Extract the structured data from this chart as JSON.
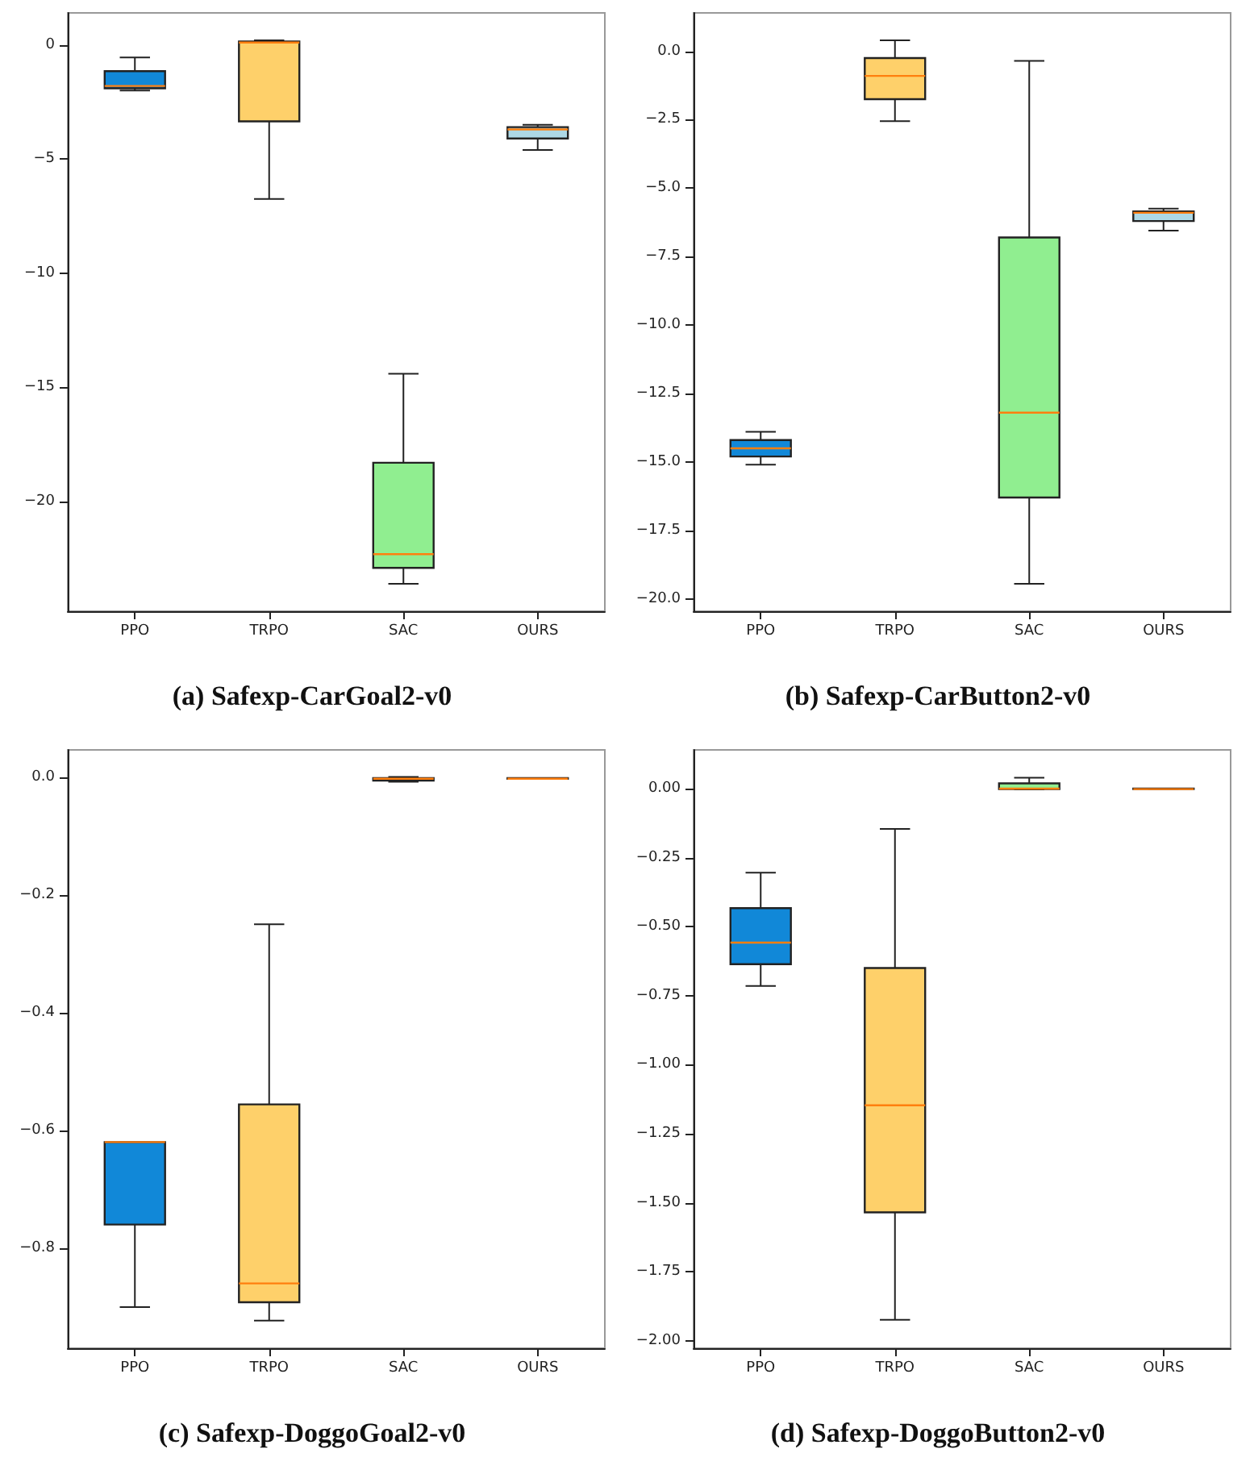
{
  "chart_data": [
    {
      "type": "box",
      "title": "(a) Safexp-CarGoal2-v0",
      "categories": [
        "PPO",
        "TRPO",
        "SAC",
        "OURS"
      ],
      "colors": [
        "#1188d8",
        "#fed06a",
        "#90ee90",
        "#add8e6"
      ],
      "boxes": [
        {
          "low": -2.0,
          "q1": -1.9,
          "median": -1.8,
          "q3": -1.15,
          "high": -0.55
        },
        {
          "low": -6.75,
          "q1": -3.35,
          "median": 0.1,
          "q3": 0.15,
          "high": 0.2
        },
        {
          "low": -23.6,
          "q1": -22.9,
          "median": -22.3,
          "q3": -18.3,
          "high": -14.4
        },
        {
          "low": -4.6,
          "q1": -4.1,
          "median": -3.7,
          "q3": -3.6,
          "high": -3.5
        }
      ],
      "ylim": [
        -24.8,
        1.4
      ],
      "yticks": [
        {
          "value": 0,
          "label": "0"
        },
        {
          "value": -5,
          "label": "−5"
        },
        {
          "value": -10,
          "label": "−10"
        },
        {
          "value": -15,
          "label": "−15"
        },
        {
          "value": -20,
          "label": "−20"
        }
      ]
    },
    {
      "type": "box",
      "title": "(b) Safexp-CarButton2-v0",
      "categories": [
        "PPO",
        "TRPO",
        "SAC",
        "OURS"
      ],
      "colors": [
        "#1188d8",
        "#fed06a",
        "#90ee90",
        "#add8e6"
      ],
      "boxes": [
        {
          "low": -15.1,
          "q1": -14.8,
          "median": -14.5,
          "q3": -14.2,
          "high": -13.9
        },
        {
          "low": -2.55,
          "q1": -1.75,
          "median": -0.9,
          "q3": -0.25,
          "high": 0.4
        },
        {
          "low": -19.45,
          "q1": -16.3,
          "median": -13.2,
          "q3": -6.8,
          "high": -0.35
        },
        {
          "low": -6.55,
          "q1": -6.2,
          "median": -5.9,
          "q3": -5.85,
          "high": -5.75
        }
      ],
      "ylim": [
        -20.45,
        1.4
      ],
      "yticks": [
        {
          "value": 0,
          "label": "0.0"
        },
        {
          "value": -2.5,
          "label": "−2.5"
        },
        {
          "value": -5,
          "label": "−5.0"
        },
        {
          "value": -7.5,
          "label": "−7.5"
        },
        {
          "value": -10,
          "label": "−10.0"
        },
        {
          "value": -12.5,
          "label": "−12.5"
        },
        {
          "value": -15,
          "label": "−15.0"
        },
        {
          "value": -17.5,
          "label": "−17.5"
        },
        {
          "value": -20,
          "label": "−20.0"
        }
      ]
    },
    {
      "type": "box",
      "title": "(c) Safexp-DoggoGoal2-v0",
      "categories": [
        "PPO",
        "TRPO",
        "SAC",
        "OURS"
      ],
      "colors": [
        "#1188d8",
        "#fed06a",
        "#90ee90",
        "#add8e6"
      ],
      "boxes": [
        {
          "low": -0.9,
          "q1": -0.76,
          "median": -0.62,
          "q3": -0.62,
          "high": -0.62
        },
        {
          "low": -0.923,
          "q1": -0.892,
          "median": -0.86,
          "q3": -0.556,
          "high": -0.25
        },
        {
          "low": -0.008,
          "q1": -0.006,
          "median": -0.003,
          "q3": -0.002,
          "high": 0.0
        },
        {
          "low": -0.003,
          "q1": -0.003,
          "median": -0.003,
          "q3": -0.002,
          "high": -0.002
        }
      ],
      "ylim": [
        -0.97,
        0.046
      ],
      "yticks": [
        {
          "value": 0,
          "label": "0.0"
        },
        {
          "value": -0.2,
          "label": "−0.2"
        },
        {
          "value": -0.4,
          "label": "−0.4"
        },
        {
          "value": -0.6,
          "label": "−0.6"
        },
        {
          "value": -0.8,
          "label": "−0.8"
        }
      ]
    },
    {
      "type": "box",
      "title": "(d) Safexp-DoggoButton2-v0",
      "categories": [
        "PPO",
        "TRPO",
        "SAC",
        "OURS"
      ],
      "colors": [
        "#1188d8",
        "#fed06a",
        "#90ee90",
        "#add8e6"
      ],
      "boxes": [
        {
          "low": -0.715,
          "q1": -0.636,
          "median": -0.558,
          "q3": -0.433,
          "high": -0.305
        },
        {
          "low": -1.924,
          "q1": -1.535,
          "median": -1.147,
          "q3": -0.65,
          "high": -0.146
        },
        {
          "low": -0.003,
          "q1": -0.002,
          "median": 0.0,
          "q3": 0.019,
          "high": 0.039
        },
        {
          "low": -0.002,
          "q1": -0.002,
          "median": -0.002,
          "q3": 0.0,
          "high": 0.0
        }
      ],
      "ylim": [
        -2.027,
        0.14
      ],
      "yticks": [
        {
          "value": 0,
          "label": "0.00"
        },
        {
          "value": -0.25,
          "label": "−0.25"
        },
        {
          "value": -0.5,
          "label": "−0.50"
        },
        {
          "value": -0.75,
          "label": "−0.75"
        },
        {
          "value": -1,
          "label": "−1.00"
        },
        {
          "value": -1.25,
          "label": "−1.25"
        },
        {
          "value": -1.5,
          "label": "−1.50"
        },
        {
          "value": -1.75,
          "label": "−1.75"
        },
        {
          "value": -2,
          "label": "−2.00"
        }
      ]
    }
  ]
}
